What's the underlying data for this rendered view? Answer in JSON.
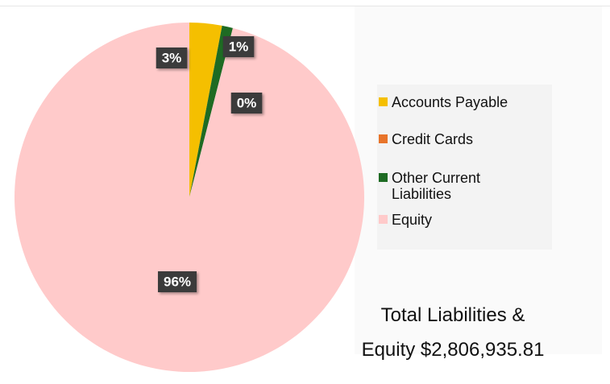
{
  "chart_data": {
    "type": "pie",
    "categories": [
      "Accounts Payable",
      "Credit Cards",
      "Other Current Liabilities",
      "Equity"
    ],
    "values": [
      3,
      0,
      1,
      96
    ],
    "value_labels": [
      "3%",
      "0%",
      "1%",
      "96%"
    ],
    "colors": [
      "#f5bf00",
      "#e8742a",
      "#1e6b23",
      "#ffcaca"
    ],
    "annotation": "Total Liabilities & Equity $2,806,935.81"
  }
}
